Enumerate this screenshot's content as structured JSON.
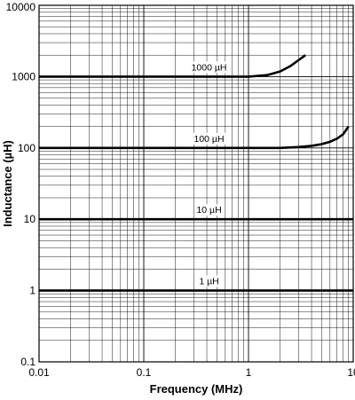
{
  "chart_data": {
    "type": "line",
    "title": "",
    "xlabel": "Frequency (MHz)",
    "ylabel": "Inductance (µH)",
    "x_scale": "log",
    "y_scale": "log",
    "xlim": [
      0.01,
      10
    ],
    "ylim": [
      0.1,
      10000
    ],
    "x_ticks": [
      {
        "value": 0.01,
        "label": "0.01"
      },
      {
        "value": 0.1,
        "label": "0.1"
      },
      {
        "value": 1,
        "label": "1"
      },
      {
        "value": 10,
        "label": "10"
      }
    ],
    "y_ticks": [
      {
        "value": 0.1,
        "label": "0.1"
      },
      {
        "value": 1,
        "label": "1"
      },
      {
        "value": 10,
        "label": "10"
      },
      {
        "value": 100,
        "label": "100"
      },
      {
        "value": 1000,
        "label": "1000"
      },
      {
        "value": 10000,
        "label": "10000"
      }
    ],
    "grid": true,
    "series": [
      {
        "name": "1000 µH",
        "x": [
          0.01,
          1.0,
          1.5,
          2.0,
          2.5,
          3.0,
          3.5
        ],
        "y": [
          1000,
          1000,
          1050,
          1180,
          1400,
          1700,
          2000
        ]
      },
      {
        "name": "100 µH",
        "x": [
          0.01,
          2.0,
          3.0,
          4.0,
          5.0,
          6.0,
          7.0,
          8.0,
          9.0
        ],
        "y": [
          100,
          100,
          103,
          107,
          113,
          122,
          135,
          155,
          200
        ]
      },
      {
        "name": "10 µH",
        "x": [
          0.01,
          10
        ],
        "y": [
          10,
          10
        ]
      },
      {
        "name": "1 µH",
        "x": [
          0.01,
          10
        ],
        "y": [
          1,
          1
        ]
      }
    ]
  }
}
